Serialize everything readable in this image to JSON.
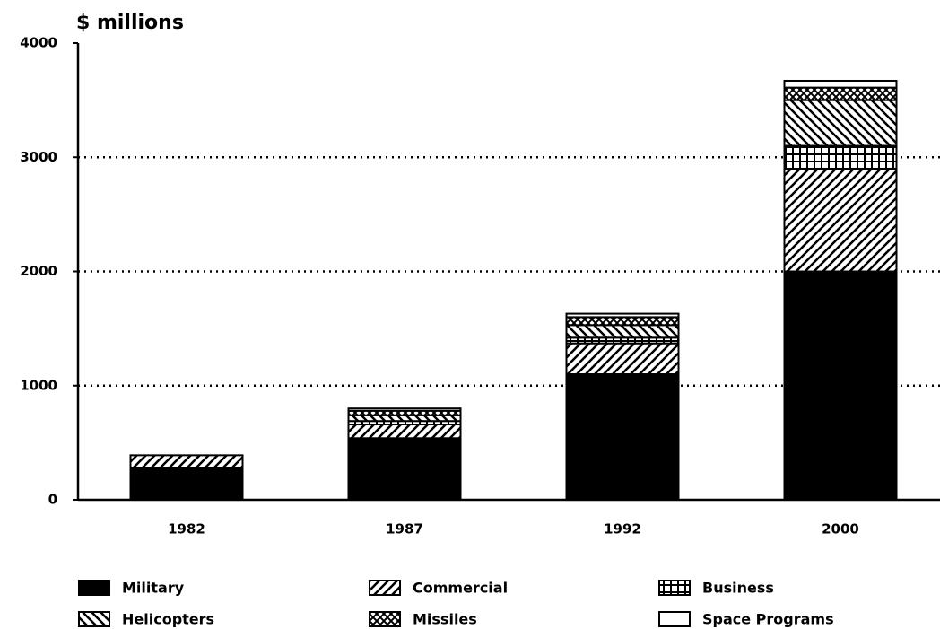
{
  "chart_data": {
    "type": "stacked_bar",
    "title": "$ millions",
    "categories": [
      "1982",
      "1987",
      "1992",
      "2000"
    ],
    "series": [
      {
        "name": "Military",
        "color": "#000000",
        "values": [
          280,
          540,
          1100,
          2000
        ]
      },
      {
        "name": "Commercial",
        "color": "#000000",
        "values": [
          110,
          120,
          270,
          900
        ]
      },
      {
        "name": "Business",
        "color": "#000000",
        "values": [
          0,
          30,
          50,
          200
        ]
      },
      {
        "name": "Helicopters",
        "color": "#000000",
        "values": [
          0,
          50,
          110,
          400
        ]
      },
      {
        "name": "Missiles",
        "color": "#000000",
        "values": [
          0,
          40,
          70,
          110
        ]
      },
      {
        "name": "Space Programs",
        "color": "#000000",
        "values": [
          0,
          20,
          30,
          60
        ]
      }
    ],
    "ylim": [
      0,
      4000
    ],
    "yticks": [
      0,
      1000,
      2000,
      3000,
      4000
    ],
    "grid": true
  }
}
